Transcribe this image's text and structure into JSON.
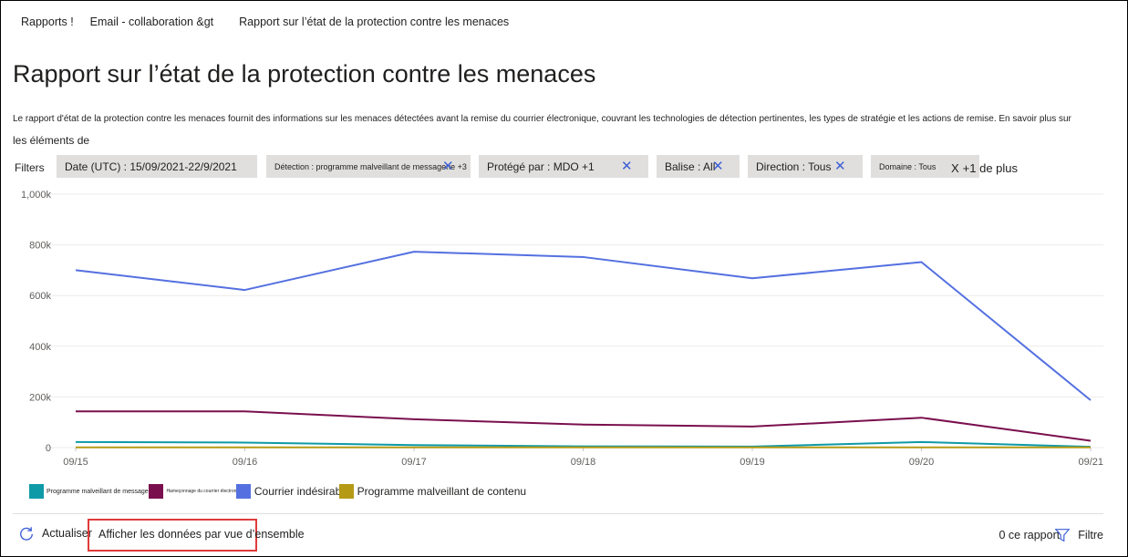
{
  "breadcrumb": {
    "item1": "Rapports !",
    "item2": "Email - collaboration &gt",
    "item3": "Rapport sur l’état de la protection contre les menaces"
  },
  "page": {
    "title": "Rapport sur l’état de la protection contre les menaces",
    "description": "Le rapport d'état de la protection contre les menaces fournit des informations sur les menaces détectées avant la remise du courrier électronique, couvrant les technologies de détection pertinentes, les types de stratégie et les actions de remise. En savoir plus sur",
    "description_more": "les éléments de"
  },
  "filters": {
    "label": "Filters",
    "date": "Date (UTC) : 15/09/2021-22/9/2021",
    "detection": "Détection : programme malveillant de messagerie +3",
    "protected": "Protégé par : MDO +1",
    "tag": "Balise : All",
    "direction": "Direction : Tous",
    "domain": "Domaine : Tous",
    "more": "+1 de plus",
    "close_glyph": "X"
  },
  "chart_data": {
    "type": "line",
    "categories": [
      "09/15",
      "09/16",
      "09/17",
      "09/18",
      "09/19",
      "09/20",
      "09/21"
    ],
    "y_tick_labels": [
      "0",
      "200k",
      "400k",
      "600k",
      "800k",
      "1,000k"
    ],
    "ylim": [
      0,
      1000000
    ],
    "grid": true,
    "legend_position": "bottom-left",
    "series": [
      {
        "name": "Programme malveillant de messagerie",
        "color": "#0e9aa7",
        "values": [
          22000,
          20000,
          10000,
          5000,
          4000,
          22000,
          3000
        ]
      },
      {
        "name": "Hameçonnage du courrier électronique",
        "color": "#7a0f4e",
        "values": [
          143000,
          143000,
          112000,
          91000,
          83000,
          118000,
          27000
        ]
      },
      {
        "name": "Courrier indésirable",
        "color": "#5470e0",
        "values": [
          700000,
          622000,
          773000,
          752000,
          668000,
          732000,
          187000
        ]
      },
      {
        "name": "Programme malveillant de contenu",
        "color": "#b59a16",
        "values": [
          1000,
          1000,
          1000,
          1000,
          1000,
          1000,
          1000
        ]
      }
    ]
  },
  "legend": {
    "item1": "Programme malveillant de messagerie",
    "item2": "Hameçonnage du courrier électronique",
    "item3": "Courrier indésirable",
    "item4": "Programme malveillant de contenu"
  },
  "toolbar": {
    "refresh": "Actualiser",
    "overview": "Afficher les données par vue d’ensemble",
    "count": "0  ce rapport",
    "filter": "Filtre"
  }
}
